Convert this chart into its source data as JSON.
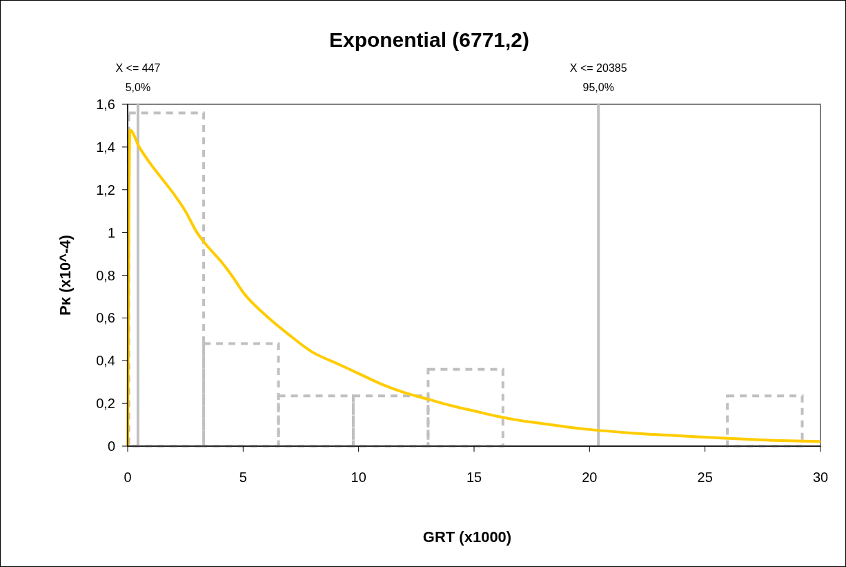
{
  "chart_data": {
    "type": "histogram",
    "title": "Exponential (6771,2)",
    "xlabel": "GRT (x1000)",
    "ylabel": "Pκ (x10^-4)",
    "bins": [
      0.05,
      3.29,
      6.53,
      9.77,
      13.01,
      16.25,
      19.49,
      22.73,
      25.97,
      29.21
    ],
    "values": [
      1.56,
      0.48,
      0.235,
      0.235,
      0.36,
      0,
      0,
      0,
      0.235
    ],
    "color": "#c0c0c0",
    "line_style": "dashed",
    "series": [
      {
        "type": "line",
        "color": "#ffcc00",
        "line_style": "solid",
        "x": [
          0,
          0.1,
          0.5,
          1,
          1.5,
          2,
          2.5,
          3,
          3.5,
          4,
          4.5,
          5,
          6,
          7,
          8,
          9,
          10,
          11,
          12,
          13,
          14,
          15,
          16,
          17,
          18,
          19,
          20,
          22,
          24,
          26,
          28,
          30
        ],
        "values": [
          0,
          1.48,
          1.4,
          1.32,
          1.25,
          1.18,
          1.1,
          1.0,
          0.93,
          0.87,
          0.8,
          0.72,
          0.61,
          0.52,
          0.44,
          0.39,
          0.34,
          0.29,
          0.25,
          0.22,
          0.19,
          0.165,
          0.14,
          0.12,
          0.105,
          0.09,
          0.078,
          0.06,
          0.048,
          0.036,
          0.027,
          0.022
        ]
      }
    ],
    "ref_lines": [
      {
        "axis": "x",
        "value": 0.447,
        "label": "X <= 447\n5,0%",
        "color": "#c0c0c0"
      },
      {
        "axis": "x",
        "value": 20.385,
        "label": "X <= 20385\n95,0%",
        "color": "#c0c0c0"
      }
    ],
    "xlim": [
      0,
      30
    ],
    "xticks": [
      0,
      5,
      10,
      15,
      20,
      25,
      30
    ],
    "ylim": [
      0,
      1.6
    ],
    "yticks": [
      0,
      {
        "value": 0.2,
        "label": "0,2"
      },
      {
        "value": 0.4,
        "label": "0,4"
      },
      {
        "value": 0.6,
        "label": "0,6"
      },
      {
        "value": 0.8,
        "label": "0,8"
      },
      1,
      {
        "value": 1.2,
        "label": "1,2"
      },
      {
        "value": 1.4,
        "label": "1,4"
      },
      {
        "value": 1.6,
        "label": "1,6"
      }
    ]
  }
}
